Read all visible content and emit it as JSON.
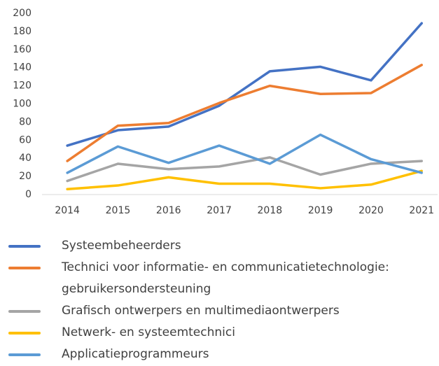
{
  "chart_data": {
    "type": "line",
    "categories": [
      "2014",
      "2015",
      "2016",
      "2017",
      "2018",
      "2019",
      "2020",
      "2021"
    ],
    "series": [
      {
        "name": "Systeembeheerders",
        "color": "#4472c4",
        "values": [
          54,
          71,
          75,
          98,
          136,
          141,
          126,
          189
        ]
      },
      {
        "name": "Technici voor informatie- en communicatietechnologie: gebruikersondersteuning",
        "color": "#ed7d31",
        "values": [
          37,
          76,
          79,
          101,
          120,
          111,
          112,
          143
        ]
      },
      {
        "name": "Grafisch ontwerpers en multimediaontwerpers",
        "color": "#a5a5a5",
        "values": [
          15,
          34,
          28,
          31,
          41,
          22,
          34,
          37
        ]
      },
      {
        "name": "Netwerk- en systeemtechnici",
        "color": "#ffc000",
        "values": [
          6,
          10,
          19,
          12,
          12,
          7,
          11,
          26
        ]
      },
      {
        "name": "Applicatieprogrammeurs",
        "color": "#5b9bd5",
        "values": [
          24,
          53,
          35,
          54,
          34,
          66,
          39,
          24
        ]
      }
    ],
    "ylim": [
      0,
      200
    ],
    "yticks": [
      0,
      20,
      40,
      60,
      80,
      100,
      120,
      140,
      160,
      180,
      200
    ],
    "grid": false
  }
}
